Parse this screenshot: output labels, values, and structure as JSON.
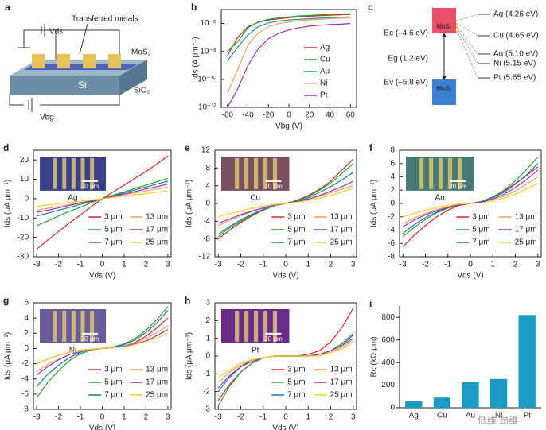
{
  "schematic": {
    "panel_label": "a",
    "vds": "Vds",
    "metals_label": "Transferred metals",
    "mos2": "MoS₂",
    "si": "Si",
    "sio2": "SiO₂",
    "vbg": "Vbg"
  },
  "band_diagram": {
    "panel_label": "c",
    "mos2_top": "MoS₂",
    "mos2_bottom": "MoS₂",
    "ec": "Ec (–4.6 eV)",
    "eg": "Eg (1.2 eV)",
    "ev": "Ev (–5.8 eV)",
    "metals": [
      "Ag (4.26 eV)",
      "Cu (4.65 eV)",
      "Au (5.10 eV)",
      "Ni (5.15 eV)",
      "Pt (5.65 eV)"
    ]
  },
  "watermark": "低维 昂维",
  "chart_data": [
    {
      "type": "line",
      "panel_label": "b",
      "xlabel": "Vbg (V)",
      "ylabel": "Ids (A μm⁻¹)",
      "y_log": true,
      "legend": "right",
      "x": [
        -60,
        -50,
        -40,
        -30,
        -20,
        -10,
        0,
        10,
        20,
        30,
        40,
        50,
        60
      ],
      "series": [
        {
          "name": "Ag",
          "color": "#d62728",
          "values": [
            5e-09,
            1e-07,
            6e-07,
            1.2e-06,
            1.8e-06,
            2.2e-06,
            2.6e-06,
            3e-06,
            3.3e-06,
            3.6e-06,
            3.9e-06,
            4.2e-06,
            4.5e-06
          ]
        },
        {
          "name": "Cu",
          "color": "#2ca02c",
          "values": [
            1e-08,
            5e-08,
            5e-07,
            1.3e-06,
            2e-06,
            2.5e-06,
            3e-06,
            3.5e-06,
            3.8e-06,
            4.2e-06,
            4.5e-06,
            4.8e-06,
            5e-06
          ]
        },
        {
          "name": "Au",
          "color": "#1f8fb4",
          "values": [
            2e-09,
            2e-08,
            1.5e-07,
            6e-07,
            1.1e-06,
            1.5e-06,
            1.8e-06,
            2e-06,
            2.2e-06,
            2.4e-06,
            2.6e-06,
            2.8e-06,
            3e-06
          ]
        },
        {
          "name": "Ni",
          "color": "#f0a060",
          "values": [
            1e-11,
            5e-10,
            3e-08,
            2e-07,
            6e-07,
            1e-06,
            1.3e-06,
            1.6e-06,
            1.8e-06,
            2e-06,
            2.2e-06,
            2.4e-06,
            2.5e-06
          ]
        },
        {
          "name": "Pt",
          "color": "#9b30b5",
          "values": [
            1e-12,
            2e-11,
            1e-09,
            1.5e-08,
            8e-08,
            2e-07,
            3.5e-07,
            5e-07,
            6.5e-07,
            7.5e-07,
            8.5e-07,
            9e-07,
            1e-06
          ]
        }
      ],
      "xlim": [
        -66,
        66
      ],
      "ylim": [
        1e-12,
        1e-05
      ],
      "xticks": [
        -60,
        -40,
        -20,
        0,
        20,
        40,
        60
      ],
      "yticks": [
        {
          "value": 1e-12,
          "label": "10⁻¹²"
        },
        {
          "value": 1e-10,
          "label": "10⁻¹⁰"
        },
        {
          "value": 1e-08,
          "label": "10⁻⁸"
        },
        {
          "value": 1e-06,
          "label": "10⁻⁶"
        }
      ]
    },
    {
      "type": "line",
      "panel_label": "d",
      "xlabel": "Vds (V)",
      "ylabel": "Ids (μA μm⁻¹)",
      "legend": "lower right",
      "inset_label": "Ag",
      "scale_bar": "20 μm",
      "x": [
        -3,
        -2.5,
        -2,
        -1.5,
        -1,
        -0.5,
        0,
        0.5,
        1,
        1.5,
        2,
        2.5,
        3
      ],
      "series": [
        {
          "name": "3 μm",
          "color": "#d62728",
          "values": [
            -26,
            -21.5,
            -17,
            -12.5,
            -8.5,
            -4,
            0,
            3.5,
            7,
            10.5,
            14,
            18,
            22
          ]
        },
        {
          "name": "5 μm",
          "color": "#2ca02c",
          "values": [
            -14,
            -11.5,
            -9,
            -6.5,
            -4.5,
            -2,
            0,
            1.8,
            3.5,
            5.3,
            7,
            8.8,
            10.5
          ]
        },
        {
          "name": "7 μm",
          "color": "#1f77b4",
          "values": [
            -9,
            -7.5,
            -6,
            -4.5,
            -3,
            -1.5,
            0,
            1.5,
            3,
            4.5,
            6,
            7.5,
            9
          ]
        },
        {
          "name": "13 μm",
          "color": "#f0a060",
          "values": [
            -6,
            -5,
            -4,
            -3,
            -2,
            -1,
            0,
            1,
            2,
            3,
            4,
            5,
            6
          ]
        },
        {
          "name": "17 μm",
          "color": "#9b30b5",
          "values": [
            -7,
            -6,
            -4.8,
            -3.5,
            -2.3,
            -1.2,
            0,
            1.2,
            2.4,
            3.6,
            5,
            6.2,
            7.5
          ]
        },
        {
          "name": "25 μm",
          "color": "#f2d02a",
          "values": [
            -4,
            -3.3,
            -2.6,
            -2,
            -1.3,
            -0.6,
            0,
            0.6,
            1.3,
            2,
            2.6,
            3.3,
            4
          ]
        }
      ],
      "xlim": [
        -3.15,
        3.15
      ],
      "ylim": [
        -30,
        25
      ],
      "xticks": [
        -3,
        -2,
        -1,
        0,
        1,
        2,
        3
      ],
      "yticks": [
        -30,
        -20,
        -10,
        0,
        10,
        20
      ]
    },
    {
      "type": "line",
      "panel_label": "e",
      "xlabel": "Vds (V)",
      "ylabel": "Ids (μA μm⁻¹)",
      "legend": "lower right",
      "inset_label": "Cu",
      "scale_bar": "20 μm",
      "x": [
        -3,
        -2.5,
        -2,
        -1.5,
        -1,
        -0.5,
        0,
        0.5,
        1,
        1.5,
        2,
        2.5,
        3
      ],
      "series": [
        {
          "name": "3 μm",
          "color": "#d62728",
          "values": [
            -8,
            -6,
            -4.3,
            -2.8,
            -1.5,
            -0.5,
            0,
            0.7,
            1.8,
            3.2,
            5,
            7.5,
            10
          ]
        },
        {
          "name": "5 μm",
          "color": "#2ca02c",
          "values": [
            -7.5,
            -5.5,
            -4,
            -2.6,
            -1.4,
            -0.5,
            0,
            0.6,
            1.6,
            3,
            4.6,
            6.8,
            9
          ]
        },
        {
          "name": "7 μm",
          "color": "#1f77b4",
          "values": [
            -7,
            -5.2,
            -3.7,
            -2.4,
            -1.3,
            -0.4,
            0,
            0.5,
            1.3,
            2.5,
            3.8,
            5.3,
            7
          ]
        },
        {
          "name": "13 μm",
          "color": "#f0a060",
          "values": [
            -5,
            -3.8,
            -2.8,
            -1.8,
            -1,
            -0.4,
            0,
            0.4,
            1,
            1.6,
            2.4,
            3.2,
            4
          ]
        },
        {
          "name": "17 μm",
          "color": "#9b30b5",
          "values": [
            -4.5,
            -3.5,
            -2.5,
            -1.7,
            -1,
            -0.3,
            0,
            0.4,
            1,
            1.8,
            2.8,
            3.8,
            5
          ]
        },
        {
          "name": "25 μm",
          "color": "#f2d02a",
          "values": [
            -3,
            -2.3,
            -1.7,
            -1.1,
            -0.6,
            -0.2,
            0,
            0.3,
            0.7,
            1.2,
            1.8,
            2.6,
            3.5
          ]
        }
      ],
      "xlim": [
        -3.15,
        3.15
      ],
      "ylim": [
        -12,
        12
      ],
      "xticks": [
        -3,
        -2,
        -1,
        0,
        1,
        2,
        3
      ],
      "yticks": [
        -12,
        -8,
        -4,
        0,
        4,
        8,
        12
      ]
    },
    {
      "type": "line",
      "panel_label": "f",
      "xlabel": "Vds (V)",
      "ylabel": "Ids (μA μm⁻¹)",
      "legend": "lower right",
      "inset_label": "Au",
      "scale_bar": "20 μm",
      "x": [
        -3,
        -2.5,
        -2,
        -1.5,
        -1,
        -0.5,
        0,
        0.5,
        1,
        1.5,
        2,
        2.5,
        3
      ],
      "series": [
        {
          "name": "3 μm",
          "color": "#d62728",
          "values": [
            -6.5,
            -4.8,
            -3.3,
            -2,
            -1,
            -0.3,
            0,
            0.3,
            1,
            1.9,
            3,
            4.2,
            5.5
          ]
        },
        {
          "name": "5 μm",
          "color": "#2ca02c",
          "values": [
            -5,
            -3.6,
            -2.4,
            -1.4,
            -0.7,
            -0.2,
            0,
            0.3,
            1,
            2,
            3.4,
            5.1,
            7
          ]
        },
        {
          "name": "7 μm",
          "color": "#1f77b4",
          "values": [
            -4.5,
            -3.2,
            -2.1,
            -1.3,
            -0.6,
            -0.2,
            0,
            0.3,
            0.9,
            1.7,
            2.9,
            4.3,
            6
          ]
        },
        {
          "name": "13 μm",
          "color": "#f0a060",
          "values": [
            -3,
            -2.2,
            -1.5,
            -0.9,
            -0.5,
            -0.1,
            0,
            0.2,
            0.6,
            1.1,
            1.9,
            2.9,
            4
          ]
        },
        {
          "name": "17 μm",
          "color": "#9b30b5",
          "values": [
            -3.5,
            -2.5,
            -1.7,
            -1.1,
            -0.6,
            -0.2,
            0,
            0.2,
            0.7,
            1.4,
            2.4,
            3.6,
            5
          ]
        },
        {
          "name": "25 μm",
          "color": "#f2d02a",
          "values": [
            -2,
            -1.5,
            -1,
            -0.6,
            -0.3,
            -0.1,
            0,
            0.1,
            0.4,
            0.8,
            1.4,
            2.2,
            3
          ]
        }
      ],
      "xlim": [
        -3.15,
        3.15
      ],
      "ylim": [
        -8,
        8
      ],
      "xticks": [
        -3,
        -2,
        -1,
        0,
        1,
        2,
        3
      ],
      "yticks": [
        -8,
        -6,
        -4,
        -2,
        0,
        2,
        4,
        6,
        8
      ]
    },
    {
      "type": "line",
      "panel_label": "g",
      "xlabel": "Vds (V)",
      "ylabel": "Ids (μA μm⁻¹)",
      "legend": "lower right",
      "inset_label": "Ni",
      "scale_bar": "20 μm",
      "x": [
        -3,
        -2.5,
        -2,
        -1.5,
        -1,
        -0.5,
        0,
        0.5,
        1,
        1.5,
        2,
        2.5,
        3
      ],
      "series": [
        {
          "name": "3 μm",
          "color": "#d62728",
          "values": [
            -2,
            -1.4,
            -0.9,
            -0.5,
            -0.2,
            -0.1,
            0,
            0.1,
            0.3,
            0.8,
            1.6,
            2.7,
            4
          ]
        },
        {
          "name": "5 μm",
          "color": "#2ca02c",
          "values": [
            -6.5,
            -4.5,
            -2.9,
            -1.6,
            -0.7,
            -0.2,
            0,
            0.2,
            0.6,
            1.3,
            2.4,
            3.8,
            5.5
          ]
        },
        {
          "name": "7 μm",
          "color": "#1f77b4",
          "values": [
            -5,
            -3.4,
            -2.2,
            -1.2,
            -0.5,
            -0.1,
            0,
            0.1,
            0.5,
            1.1,
            2.1,
            3.4,
            5
          ]
        },
        {
          "name": "13 μm",
          "color": "#f0a060",
          "values": [
            -3,
            -2.1,
            -1.4,
            -0.8,
            -0.4,
            -0.1,
            0,
            0.1,
            0.3,
            0.7,
            1.3,
            2.1,
            3
          ]
        },
        {
          "name": "17 μm",
          "color": "#9b30b5",
          "values": [
            -3.5,
            -2.4,
            -1.5,
            -0.8,
            -0.4,
            -0.1,
            0,
            0.1,
            0.3,
            0.6,
            1,
            1.7,
            2.5
          ]
        },
        {
          "name": "25 μm",
          "color": "#f2d02a",
          "values": [
            -2,
            -1.4,
            -0.9,
            -0.5,
            -0.2,
            -0.1,
            0,
            0.1,
            0.2,
            0.5,
            0.9,
            1.4,
            2
          ]
        }
      ],
      "xlim": [
        -3.15,
        3.15
      ],
      "ylim": [
        -8,
        6
      ],
      "xticks": [
        -3,
        -2,
        -1,
        0,
        1,
        2,
        3
      ],
      "yticks": [
        -8,
        -6,
        -4,
        -2,
        0,
        2,
        4,
        6
      ]
    },
    {
      "type": "line",
      "panel_label": "h",
      "xlabel": "Vds (V)",
      "ylabel": "Ids (μA μm⁻¹)",
      "legend": "lower right",
      "inset_label": "Pt",
      "scale_bar": "20 μm",
      "x": [
        -3,
        -2.5,
        -2,
        -1.5,
        -1,
        -0.5,
        0,
        0.5,
        1,
        1.5,
        2,
        2.5,
        3
      ],
      "series": [
        {
          "name": "3 μm",
          "color": "#d62728",
          "values": [
            -2.5,
            -1.6,
            -0.9,
            -0.4,
            -0.1,
            0,
            0,
            0,
            0.1,
            0.3,
            0.8,
            1.6,
            2.7
          ]
        },
        {
          "name": "5 μm",
          "color": "#2ca02c",
          "values": [
            -2.8,
            -1.7,
            -0.9,
            -0.4,
            -0.1,
            0,
            0,
            0,
            0,
            0.1,
            0.3,
            0.7,
            1.3
          ]
        },
        {
          "name": "7 μm",
          "color": "#1f77b4",
          "values": [
            -2,
            -1.2,
            -0.6,
            -0.2,
            -0.1,
            0,
            0,
            0,
            0,
            0.1,
            0.3,
            0.6,
            1
          ]
        },
        {
          "name": "13 μm",
          "color": "#f0a060",
          "values": [
            -1.5,
            -0.9,
            -0.5,
            -0.2,
            -0.1,
            0,
            0,
            0,
            0,
            0.1,
            0.2,
            0.5,
            0.9
          ]
        },
        {
          "name": "17 μm",
          "color": "#9b30b5",
          "values": [
            -1.8,
            -1.1,
            -0.6,
            -0.3,
            -0.1,
            0,
            0,
            0,
            0,
            0.1,
            0.3,
            0.6,
            1.2
          ]
        },
        {
          "name": "25 μm",
          "color": "#f2d02a",
          "values": [
            -1.2,
            -0.8,
            -0.4,
            -0.2,
            -0.1,
            0,
            0,
            0,
            0,
            0,
            0.2,
            0.4,
            0.8
          ]
        }
      ],
      "xlim": [
        -3.15,
        3.15
      ],
      "ylim": [
        -3,
        3
      ],
      "xticks": [
        -3,
        -2,
        -1,
        0,
        1,
        2,
        3
      ],
      "yticks": [
        -3,
        -2,
        -1,
        0,
        1,
        2,
        3
      ]
    },
    {
      "type": "bar",
      "panel_label": "i",
      "ylabel": "Rc (kΩ μm)",
      "categories": [
        "Ag",
        "Cu",
        "Au",
        "Ni",
        "Pt"
      ],
      "values": [
        60,
        90,
        225,
        255,
        820
      ],
      "color": "#1a9bc5",
      "ylim": [
        0,
        900
      ],
      "yticks": [
        0,
        200,
        400,
        600,
        800
      ]
    }
  ]
}
